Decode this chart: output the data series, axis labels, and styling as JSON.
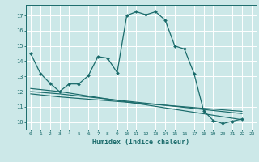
{
  "xlabel": "Humidex (Indice chaleur)",
  "xlim": [
    -0.5,
    23.5
  ],
  "ylim": [
    9.5,
    17.7
  ],
  "xticks": [
    0,
    1,
    2,
    3,
    4,
    5,
    6,
    7,
    8,
    9,
    10,
    11,
    12,
    13,
    14,
    15,
    16,
    17,
    18,
    19,
    20,
    21,
    22,
    23
  ],
  "yticks": [
    10,
    11,
    12,
    13,
    14,
    15,
    16,
    17
  ],
  "bg_color": "#cce8e8",
  "line_color": "#1a6b6b",
  "grid_color": "#b0d8d8",
  "line1_x": [
    0,
    1,
    2,
    3,
    4,
    5,
    6,
    7,
    8,
    9,
    10,
    11,
    12,
    13,
    14,
    15,
    16,
    17,
    18,
    19,
    20,
    21,
    22
  ],
  "line1_y": [
    14.5,
    13.2,
    12.55,
    12.0,
    12.5,
    12.5,
    13.05,
    14.3,
    14.2,
    13.25,
    17.0,
    17.25,
    17.05,
    17.25,
    16.7,
    15.0,
    14.8,
    13.2,
    10.75,
    10.1,
    9.9,
    10.05,
    10.2
  ],
  "line2_x": [
    0,
    3,
    22
  ],
  "line2_y": [
    12.2,
    12.0,
    10.15
  ],
  "line3_x": [
    0,
    3,
    22
  ],
  "line3_y": [
    12.0,
    11.85,
    10.55
  ],
  "line4_x": [
    0,
    3,
    22
  ],
  "line4_y": [
    11.85,
    11.65,
    10.7
  ]
}
